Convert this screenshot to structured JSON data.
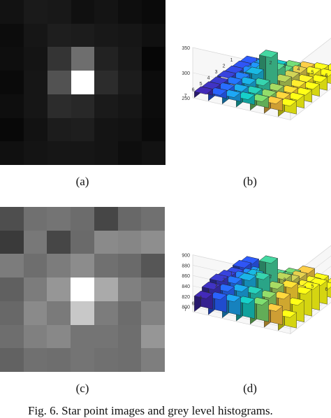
{
  "panels": {
    "a": {
      "label": "(a)",
      "rows": [
        [
          18,
          26,
          24,
          16,
          20,
          14,
          10
        ],
        [
          12,
          22,
          30,
          28,
          24,
          22,
          16
        ],
        [
          14,
          20,
          52,
          110,
          34,
          24,
          6
        ],
        [
          10,
          22,
          82,
          255,
          44,
          28,
          12
        ],
        [
          14,
          22,
          44,
          40,
          26,
          22,
          12
        ],
        [
          8,
          18,
          28,
          30,
          20,
          18,
          10
        ],
        [
          16,
          20,
          22,
          22,
          20,
          14,
          18
        ]
      ]
    },
    "c": {
      "label": "(c)",
      "rows": [
        [
          78,
          112,
          116,
          108,
          70,
          104,
          112
        ],
        [
          58,
          120,
          70,
          106,
          138,
          134,
          142
        ],
        [
          124,
          110,
          124,
          140,
          112,
          106,
          86
        ],
        [
          96,
          124,
          150,
          255,
          170,
          128,
          116
        ],
        [
          104,
          138,
          122,
          200,
          124,
          108,
          130
        ],
        [
          110,
          128,
          136,
          116,
          116,
          110,
          150
        ],
        [
          98,
          112,
          110,
          116,
          112,
          110,
          126
        ]
      ]
    },
    "b": {
      "label": "(b)",
      "z_ticks": [
        "350",
        "300",
        "250"
      ],
      "x_ticks": [
        "1",
        "2",
        "3",
        "4",
        "5",
        "6",
        "7"
      ],
      "y_ticks": [
        "1",
        "2",
        "3",
        "4",
        "5",
        "6",
        "7"
      ],
      "zmin": 250,
      "zmax": 350,
      "heights": [
        [
          252,
          256,
          258,
          262,
          266,
          270,
          274
        ],
        [
          254,
          258,
          262,
          266,
          270,
          274,
          276
        ],
        [
          256,
          262,
          270,
          282,
          272,
          270,
          276
        ],
        [
          258,
          262,
          278,
          318,
          276,
          272,
          274
        ],
        [
          258,
          264,
          270,
          274,
          270,
          272,
          274
        ],
        [
          260,
          264,
          268,
          270,
          270,
          272,
          276
        ],
        [
          262,
          266,
          268,
          270,
          272,
          274,
          276
        ]
      ]
    },
    "d": {
      "label": "(d)",
      "z_ticks": [
        "900",
        "880",
        "860",
        "840",
        "820",
        "800"
      ],
      "x_ticks": [
        "1",
        "2",
        "3",
        "4",
        "5",
        "6",
        "7"
      ],
      "y_ticks": [
        "1",
        "2",
        "3",
        "4",
        "5",
        "6",
        "7"
      ],
      "zmin": 790,
      "zmax": 900,
      "heights": [
        [
          818,
          812,
          806,
          814,
          824,
          816,
          812
        ],
        [
          822,
          816,
          818,
          820,
          826,
          822,
          818
        ],
        [
          820,
          824,
          832,
          836,
          832,
          826,
          836
        ],
        [
          826,
          830,
          840,
          872,
          846,
          830,
          840
        ],
        [
          830,
          832,
          844,
          852,
          840,
          848,
          842
        ],
        [
          826,
          828,
          834,
          836,
          834,
          838,
          832
        ],
        [
          820,
          824,
          826,
          828,
          832,
          826,
          820
        ]
      ]
    }
  },
  "caption": "Fig. 6.  Star point images and grey level histograms."
}
